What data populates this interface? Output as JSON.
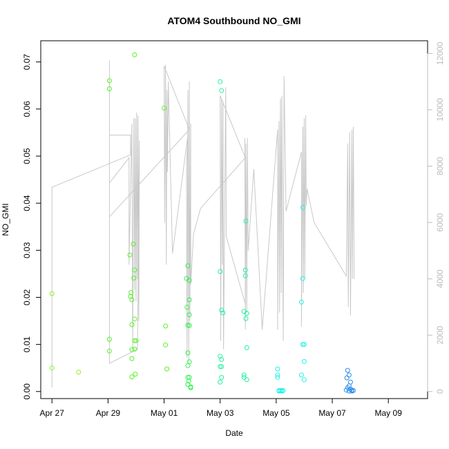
{
  "chart_data": {
    "type": "scatter",
    "title": "ATOM4 Southbound NO_GMI",
    "xlabel": "Date",
    "ylabel": "NO_GMI",
    "x_ticks": [
      "Apr 27",
      "Apr 29",
      "May 01",
      "May 03",
      "May 05",
      "May 07",
      "May 09"
    ],
    "y_ticks": [
      "0.00",
      "0.01",
      "0.02",
      "0.03",
      "0.04",
      "0.05",
      "0.06",
      "0.07"
    ],
    "y2_ticks": [
      "0",
      "2000",
      "4000",
      "6000",
      "8000",
      "10000",
      "12000"
    ],
    "xlim": [
      -0.4,
      13.4
    ],
    "ylim": [
      -0.0015,
      0.0745
    ],
    "y2lim": [
      -250,
      12450
    ],
    "grid": false,
    "legend": "none",
    "colors": {
      "line": "#c8c8c8",
      "axis": "#000000",
      "right_axis": "#bbbbbb"
    },
    "series": [
      {
        "color": "#8ef222",
        "points": [
          [
            0.0,
            0.0208
          ],
          [
            0.0,
            0.005
          ],
          [
            0.95,
            0.0041
          ]
        ]
      },
      {
        "color": "#58f228",
        "points": [
          [
            2.05,
            0.066
          ],
          [
            2.05,
            0.0643
          ],
          [
            2.05,
            0.0111
          ],
          [
            2.05,
            0.0086
          ],
          [
            2.78,
            0.029
          ],
          [
            2.8,
            0.0202
          ],
          [
            2.82,
            0.021
          ],
          [
            2.85,
            0.0195
          ],
          [
            2.85,
            0.0142
          ],
          [
            2.85,
            0.0089
          ],
          [
            2.85,
            0.007
          ],
          [
            2.85,
            0.0031
          ],
          [
            2.9,
            0.0313
          ],
          [
            2.92,
            0.0241
          ],
          [
            2.95,
            0.0258
          ],
          [
            2.95,
            0.0154
          ],
          [
            2.95,
            0.0108
          ],
          [
            2.95,
            0.009
          ],
          [
            2.97,
            0.0037
          ],
          [
            3.0,
            0.0108
          ],
          [
            2.95,
            0.0715
          ],
          [
            4.0,
            0.0602
          ],
          [
            4.05,
            0.0139
          ],
          [
            4.05,
            0.0099
          ],
          [
            4.1,
            0.0048
          ]
        ]
      },
      {
        "color": "#2ef24a",
        "points": [
          [
            4.8,
            0.024
          ],
          [
            4.82,
            0.0179
          ],
          [
            4.85,
            0.0267
          ],
          [
            4.85,
            0.0141
          ],
          [
            4.85,
            0.0082
          ],
          [
            4.85,
            0.0055
          ],
          [
            4.85,
            0.003
          ],
          [
            4.85,
            0.0015
          ],
          [
            4.9,
            0.0236
          ],
          [
            4.9,
            0.0195
          ],
          [
            4.9,
            0.0163
          ],
          [
            4.9,
            0.014
          ],
          [
            4.9,
            0.0063
          ],
          [
            4.9,
            0.003
          ],
          [
            4.95,
            0.001
          ],
          [
            4.95,
            0.0008
          ],
          [
            4.88,
            0.0022
          ]
        ]
      },
      {
        "color": "#22f2a0",
        "points": [
          [
            6.0,
            0.0658
          ],
          [
            6.05,
            0.0639
          ],
          [
            6.0,
            0.0255
          ],
          [
            6.05,
            0.0173
          ],
          [
            6.1,
            0.0167
          ],
          [
            6.0,
            0.0075
          ],
          [
            6.05,
            0.0068
          ],
          [
            6.0,
            0.0053
          ],
          [
            6.05,
            0.0053
          ],
          [
            6.05,
            0.003
          ],
          [
            6.0,
            0.002
          ],
          [
            6.92,
            0.0362
          ],
          [
            6.9,
            0.0258
          ],
          [
            6.9,
            0.0246
          ],
          [
            6.85,
            0.017
          ],
          [
            6.95,
            0.0166
          ],
          [
            6.92,
            0.0155
          ],
          [
            6.95,
            0.0093
          ],
          [
            6.85,
            0.0035
          ],
          [
            6.85,
            0.003
          ],
          [
            6.95,
            0.0025
          ]
        ]
      },
      {
        "color": "#22f2e8",
        "points": [
          [
            8.05,
            0.0048
          ],
          [
            8.05,
            0.0035
          ],
          [
            8.05,
            0.003
          ],
          [
            8.1,
            0.0002
          ],
          [
            8.15,
            0.0002
          ],
          [
            8.2,
            0.0002
          ],
          [
            8.25,
            0.0002
          ],
          [
            8.1,
            0.0001
          ],
          [
            8.2,
            0.0001
          ],
          [
            8.95,
            0.0391
          ],
          [
            8.95,
            0.024
          ],
          [
            8.9,
            0.019
          ],
          [
            8.95,
            0.01
          ],
          [
            9.0,
            0.01
          ],
          [
            9.0,
            0.0064
          ],
          [
            8.9,
            0.0035
          ],
          [
            9.0,
            0.0025
          ]
        ]
      },
      {
        "color": "#2a8ee8",
        "points": [
          [
            10.55,
            0.0045
          ],
          [
            10.6,
            0.0035
          ],
          [
            10.52,
            0.0029
          ],
          [
            10.65,
            0.002
          ],
          [
            10.6,
            0.0012
          ],
          [
            10.55,
            0.0008
          ],
          [
            10.65,
            0.0005
          ],
          [
            10.7,
            0.0003
          ],
          [
            10.5,
            0.0003
          ],
          [
            10.75,
            0.0002
          ],
          [
            10.6,
            0.0001
          ],
          [
            10.7,
            0.0001
          ]
        ]
      }
    ],
    "secondary_line": {
      "axis": "right",
      "points": [
        [
          0.0,
          150
        ],
        [
          0.0,
          7250
        ],
        [
          2.8,
          8400
        ],
        [
          2.8,
          9100
        ],
        [
          2.05,
          9100
        ],
        [
          2.05,
          11750
        ],
        [
          2.05,
          6200
        ],
        [
          2.05,
          7400
        ],
        [
          2.75,
          8300
        ],
        [
          2.75,
          4500
        ],
        [
          2.85,
          9500
        ],
        [
          2.88,
          1500
        ],
        [
          2.92,
          9700
        ],
        [
          2.95,
          3600
        ],
        [
          2.97,
          9700
        ],
        [
          3.0,
          3200
        ],
        [
          3.02,
          9900
        ],
        [
          3.05,
          4000
        ],
        [
          3.07,
          9800
        ],
        [
          3.1,
          2500
        ],
        [
          3.12,
          8900
        ],
        [
          3.05,
          1500
        ],
        [
          2.05,
          1000
        ],
        [
          2.05,
          6200
        ],
        [
          4.9,
          9300
        ],
        [
          4.0,
          11550
        ],
        [
          4.02,
          6000
        ],
        [
          4.05,
          11600
        ],
        [
          4.08,
          4500
        ],
        [
          4.1,
          10700
        ],
        [
          4.12,
          7800
        ],
        [
          4.15,
          11000
        ],
        [
          4.3,
          4900
        ],
        [
          4.85,
          9100
        ],
        [
          4.8,
          8000
        ],
        [
          4.82,
          1200
        ],
        [
          4.85,
          10700
        ],
        [
          4.88,
          1000
        ],
        [
          4.9,
          11000
        ],
        [
          4.92,
          2500
        ],
        [
          4.95,
          9500
        ],
        [
          4.95,
          3800
        ],
        [
          5.05,
          5600
        ],
        [
          5.3,
          6500
        ],
        [
          6.9,
          8300
        ],
        [
          6.0,
          10500
        ],
        [
          6.02,
          1800
        ],
        [
          6.05,
          10400
        ],
        [
          6.08,
          4500
        ],
        [
          6.1,
          10300
        ],
        [
          6.12,
          1500
        ],
        [
          6.2,
          10800
        ],
        [
          6.22,
          5500
        ],
        [
          6.9,
          3100
        ],
        [
          6.88,
          9000
        ],
        [
          6.9,
          2200
        ],
        [
          6.92,
          8800
        ],
        [
          6.95,
          2800
        ],
        [
          6.97,
          9000
        ],
        [
          7.0,
          5000
        ],
        [
          7.2,
          7900
        ],
        [
          7.5,
          2200
        ],
        [
          8.05,
          9300
        ],
        [
          8.05,
          2200
        ],
        [
          8.1,
          9600
        ],
        [
          8.12,
          2800
        ],
        [
          8.15,
          10400
        ],
        [
          8.18,
          3500
        ],
        [
          8.2,
          10500
        ],
        [
          8.25,
          1800
        ],
        [
          8.28,
          11200
        ],
        [
          8.35,
          6400
        ],
        [
          8.9,
          8500
        ],
        [
          8.9,
          2300
        ],
        [
          8.95,
          9400
        ],
        [
          8.97,
          3500
        ],
        [
          9.0,
          9700
        ],
        [
          9.02,
          4000
        ],
        [
          9.05,
          9800
        ],
        [
          9.07,
          6600
        ],
        [
          9.1,
          7200
        ],
        [
          9.35,
          6000
        ],
        [
          10.5,
          4100
        ],
        [
          10.55,
          8800
        ],
        [
          10.57,
          3000
        ],
        [
          10.62,
          9200
        ],
        [
          10.65,
          2700
        ],
        [
          10.7,
          9300
        ],
        [
          10.72,
          4000
        ],
        [
          10.75,
          9400
        ],
        [
          10.78,
          4000
        ]
      ]
    }
  }
}
